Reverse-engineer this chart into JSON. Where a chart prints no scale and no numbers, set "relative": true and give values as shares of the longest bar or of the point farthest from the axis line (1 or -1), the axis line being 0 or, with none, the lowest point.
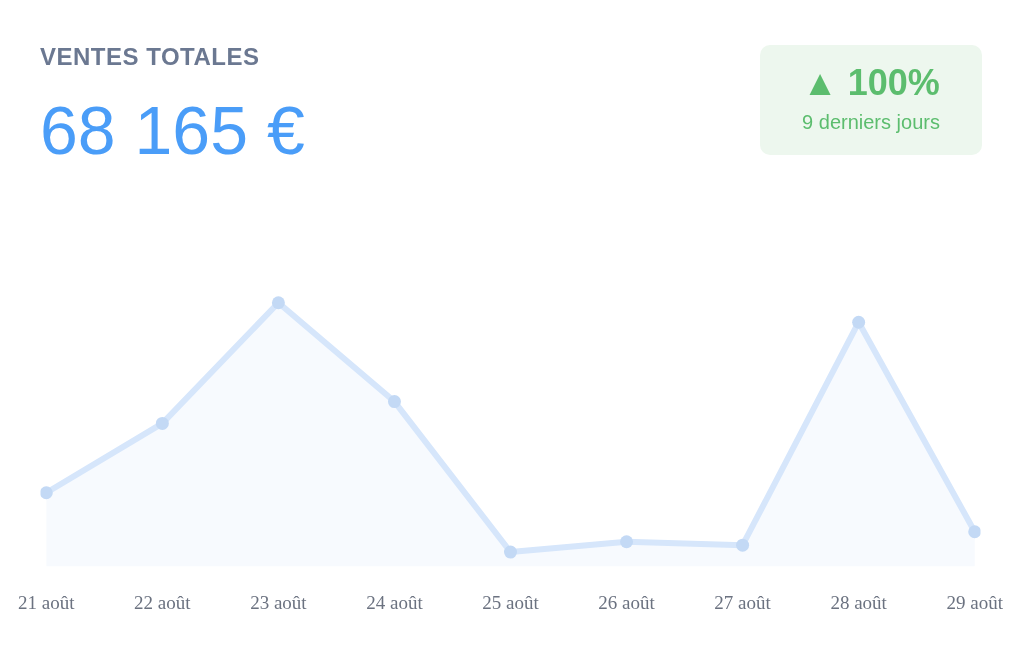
{
  "chart_data": {
    "type": "area",
    "title": "VENTES TOTALES",
    "subtitle": "68 165 €",
    "annotations": [
      "▲ 100%",
      "9 derniers jours"
    ],
    "categories": [
      "21 août",
      "22 août",
      "23 août",
      "24 août",
      "25 août",
      "26 août",
      "27 août",
      "28 août",
      "29 août"
    ],
    "relative": true,
    "marker": "circle",
    "series": [
      {
        "color": "#d6e6fb",
        "values": [
          0.279,
          0.542,
          1,
          0.625,
          0.054,
          0.093,
          0.08,
          0.926,
          0.131
        ]
      }
    ]
  }
}
